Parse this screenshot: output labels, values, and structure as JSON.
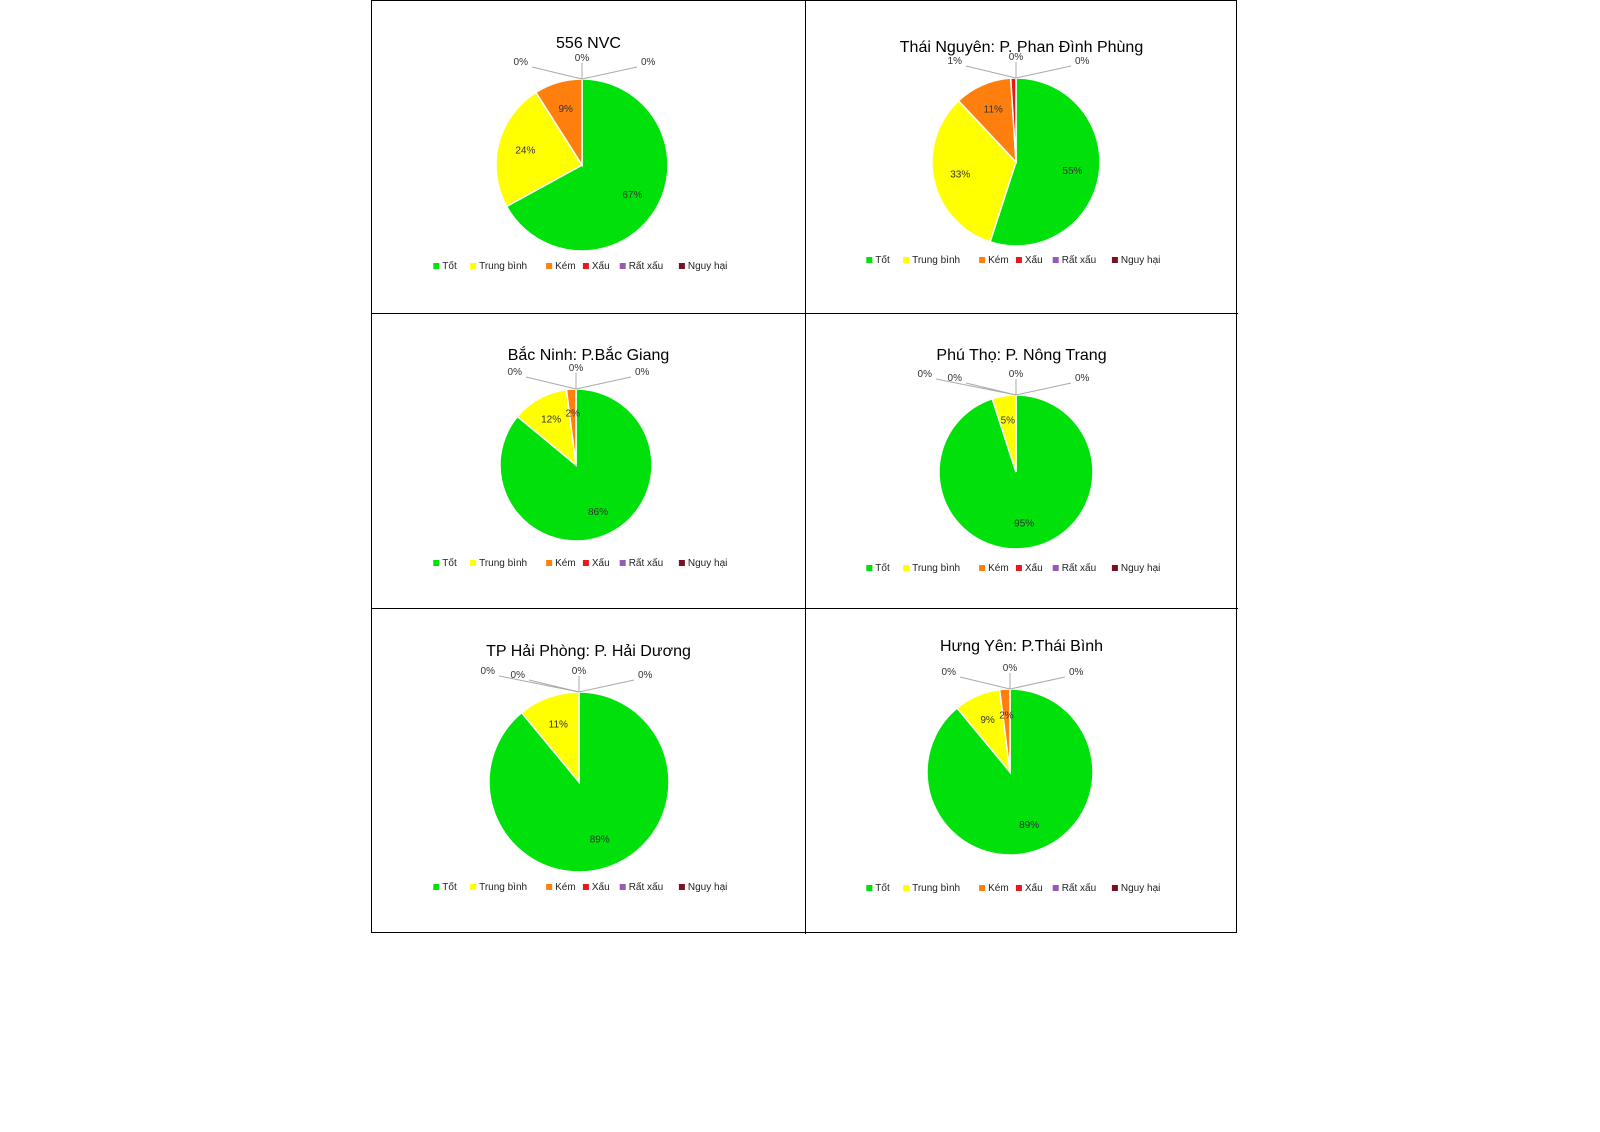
{
  "legend_labels": [
    "Tốt",
    "Trung bình",
    "Kém",
    "Xấu",
    "Rất xấu",
    "Nguy hại"
  ],
  "colors": [
    "#00e00a",
    "#ffff00",
    "#ff7f0e",
    "#e31a1c",
    "#9b59b6",
    "#7b1020"
  ],
  "chart_data": [
    {
      "type": "pie",
      "title": "556 NVC",
      "categories": [
        "Tốt",
        "Trung bình",
        "Kém",
        "Xấu",
        "Rất xấu",
        "Nguy hại"
      ],
      "values": [
        67,
        24,
        9,
        0,
        0,
        0
      ],
      "labels": [
        "67%",
        "24%",
        "9%",
        "0%",
        "0%",
        "0%"
      ],
      "legend": "bottom"
    },
    {
      "type": "pie",
      "title": "Thái Nguyên: P. Phan Đình Phùng",
      "categories": [
        "Tốt",
        "Trung bình",
        "Kém",
        "Xấu",
        "Rất xấu",
        "Nguy hại"
      ],
      "values": [
        55,
        33,
        11,
        1,
        0,
        0
      ],
      "labels": [
        "55%",
        "33%",
        "11%",
        "1%",
        "0%",
        "0%"
      ],
      "legend": "bottom"
    },
    {
      "type": "pie",
      "title": "Bắc Ninh: P.Bắc Giang",
      "categories": [
        "Tốt",
        "Trung bình",
        "Kém",
        "Xấu",
        "Rất xấu",
        "Nguy hại"
      ],
      "values": [
        86,
        12,
        2,
        0,
        0,
        0
      ],
      "labels": [
        "86%",
        "12%",
        "2%",
        "0%",
        "0%",
        "0%"
      ],
      "legend": "bottom"
    },
    {
      "type": "pie",
      "title": "Phú Thọ: P. Nông Trang",
      "categories": [
        "Tốt",
        "Trung bình",
        "Kém",
        "Xấu",
        "Rất xấu",
        "Nguy hại"
      ],
      "values": [
        95,
        5,
        0,
        0,
        0,
        0
      ],
      "labels": [
        "95%",
        "5%",
        "0%",
        "0%",
        "0%",
        "0%"
      ],
      "legend": "bottom"
    },
    {
      "type": "pie",
      "title": "TP Hải Phòng: P. Hải Dương",
      "categories": [
        "Tốt",
        "Trung bình",
        "Kém",
        "Xấu",
        "Rất xấu",
        "Nguy hại"
      ],
      "values": [
        89,
        11,
        0,
        0,
        0,
        0
      ],
      "labels": [
        "89%",
        "11%",
        "0%",
        "0%",
        "0%",
        "0%"
      ],
      "legend": "bottom"
    },
    {
      "type": "pie",
      "title": "Hưng Yên: P.Thái Bình",
      "categories": [
        "Tốt",
        "Trung bình",
        "Kém",
        "Xấu",
        "Rất xấu",
        "Nguy hại"
      ],
      "values": [
        89,
        9,
        2,
        0,
        0,
        0
      ],
      "labels": [
        "89%",
        "9%",
        "2%",
        "0%",
        "0%",
        "0%"
      ],
      "legend": "bottom"
    }
  ]
}
